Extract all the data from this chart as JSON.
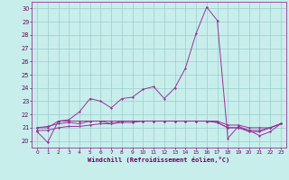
{
  "xlabel": "Windchill (Refroidissement éolien,°C)",
  "background_color": "#c8eeec",
  "grid_color": "#99cccc",
  "line_color": "#993399",
  "spine_color": "#993399",
  "xlim": [
    -0.5,
    23.5
  ],
  "ylim": [
    19.5,
    30.5
  ],
  "yticks": [
    20,
    21,
    22,
    23,
    24,
    25,
    26,
    27,
    28,
    29,
    30
  ],
  "xticks": [
    0,
    1,
    2,
    3,
    4,
    5,
    6,
    7,
    8,
    9,
    10,
    11,
    12,
    13,
    14,
    15,
    16,
    17,
    18,
    19,
    20,
    21,
    22,
    23
  ],
  "lines": [
    [
      20.7,
      19.9,
      21.5,
      21.6,
      22.2,
      23.2,
      23.0,
      22.5,
      23.2,
      23.3,
      23.9,
      24.1,
      23.2,
      24.0,
      25.5,
      28.1,
      30.1,
      29.1,
      20.2,
      21.1,
      20.8,
      20.4,
      20.7,
      21.3
    ],
    [
      21.0,
      21.0,
      21.5,
      21.5,
      21.5,
      21.5,
      21.5,
      21.5,
      21.5,
      21.5,
      21.5,
      21.5,
      21.5,
      21.5,
      21.5,
      21.5,
      21.5,
      21.5,
      21.2,
      21.2,
      21.0,
      21.0,
      21.0,
      21.3
    ],
    [
      21.0,
      21.1,
      21.3,
      21.4,
      21.3,
      21.5,
      21.5,
      21.3,
      21.5,
      21.5,
      21.5,
      21.5,
      21.5,
      21.5,
      21.5,
      21.5,
      21.5,
      21.4,
      21.0,
      21.0,
      20.8,
      20.8,
      21.0,
      21.3
    ],
    [
      20.8,
      20.8,
      21.0,
      21.1,
      21.1,
      21.2,
      21.3,
      21.3,
      21.4,
      21.4,
      21.5,
      21.5,
      21.5,
      21.5,
      21.5,
      21.5,
      21.5,
      21.4,
      21.0,
      21.0,
      20.7,
      20.7,
      21.0,
      21.3
    ]
  ]
}
